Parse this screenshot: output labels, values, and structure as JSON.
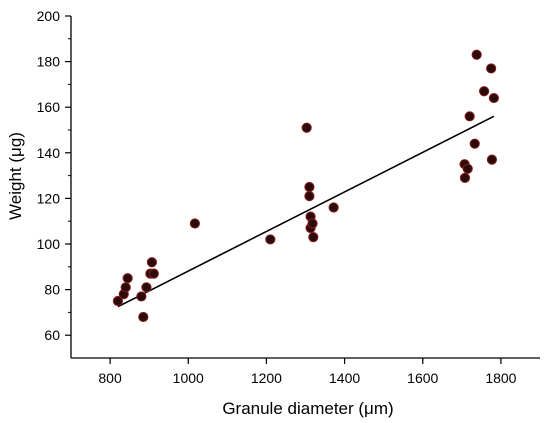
{
  "chart_data": {
    "type": "scatter",
    "xlabel": "Granule diameter (μm)",
    "ylabel": "Weight (μg)",
    "xlim": [
      700,
      1900
    ],
    "ylim": [
      50,
      200
    ],
    "x_ticks": [
      800,
      1000,
      1200,
      1400,
      1600,
      1800
    ],
    "y_ticks": [
      60,
      80,
      100,
      120,
      140,
      160,
      180,
      200
    ],
    "grid": false,
    "legend": "none",
    "series": [
      {
        "points": [
          {
            "x": 820,
            "y": 75
          },
          {
            "x": 835,
            "y": 78
          },
          {
            "x": 840,
            "y": 81
          },
          {
            "x": 845,
            "y": 85
          },
          {
            "x": 880,
            "y": 77
          },
          {
            "x": 885,
            "y": 68
          },
          {
            "x": 893,
            "y": 81
          },
          {
            "x": 903,
            "y": 87
          },
          {
            "x": 907,
            "y": 92
          },
          {
            "x": 912,
            "y": 87
          },
          {
            "x": 1017,
            "y": 109
          },
          {
            "x": 1210,
            "y": 102
          },
          {
            "x": 1303,
            "y": 151
          },
          {
            "x": 1310,
            "y": 125
          },
          {
            "x": 1310,
            "y": 121
          },
          {
            "x": 1313,
            "y": 112
          },
          {
            "x": 1313,
            "y": 107
          },
          {
            "x": 1318,
            "y": 109
          },
          {
            "x": 1320,
            "y": 103
          },
          {
            "x": 1372,
            "y": 116
          },
          {
            "x": 1707,
            "y": 135
          },
          {
            "x": 1708,
            "y": 129
          },
          {
            "x": 1715,
            "y": 133
          },
          {
            "x": 1720,
            "y": 156
          },
          {
            "x": 1733,
            "y": 144
          },
          {
            "x": 1738,
            "y": 183
          },
          {
            "x": 1757,
            "y": 167
          },
          {
            "x": 1775,
            "y": 177
          },
          {
            "x": 1777,
            "y": 137
          },
          {
            "x": 1782,
            "y": 164
          }
        ],
        "marker_color": "#2a0b0b",
        "marker_edge_color": "#8b1a1a"
      }
    ],
    "trendline": {
      "x": [
        820,
        1782
      ],
      "y": [
        72.5,
        156
      ]
    }
  }
}
